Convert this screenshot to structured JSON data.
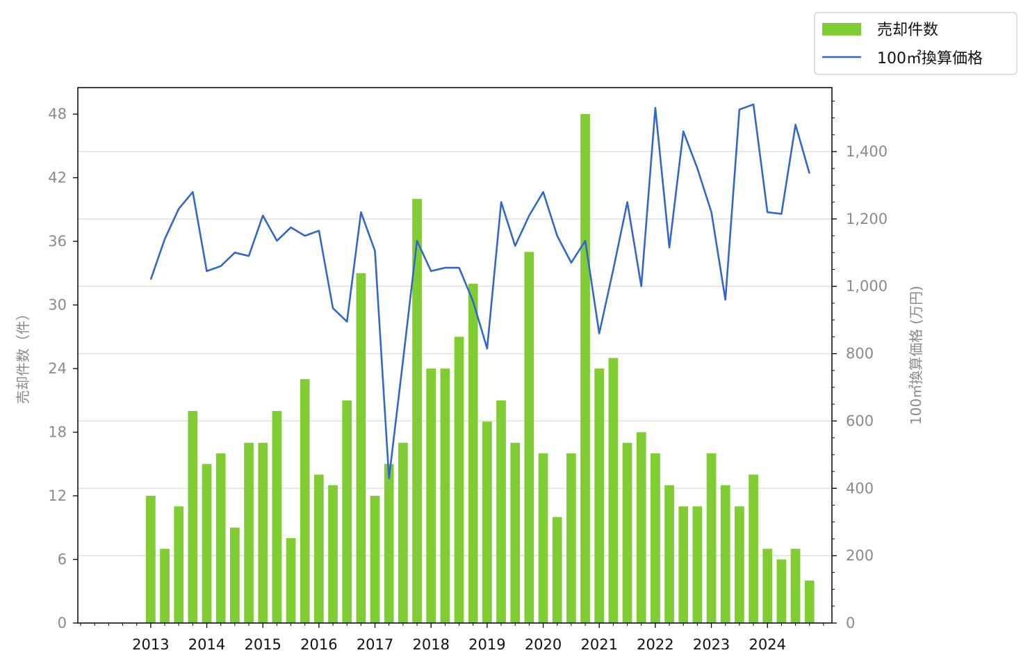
{
  "colors": {
    "bars": "#80cc33",
    "line": "#3366cc",
    "grid": "#d9d9d9",
    "axis": "#000000",
    "tick_label": "#8a8a8a"
  },
  "chart_data": {
    "type": "bar",
    "x": [
      2013.0,
      2013.25,
      2013.5,
      2013.75,
      2014.0,
      2014.25,
      2014.5,
      2014.75,
      2015.0,
      2015.25,
      2015.5,
      2015.75,
      2016.0,
      2016.25,
      2016.5,
      2016.75,
      2017.0,
      2017.25,
      2017.5,
      2017.75,
      2018.0,
      2018.25,
      2018.5,
      2018.75,
      2019.0,
      2019.25,
      2019.5,
      2019.75,
      2020.0,
      2020.25,
      2020.5,
      2020.75,
      2021.0,
      2021.25,
      2021.5,
      2021.75,
      2022.0,
      2022.25,
      2022.5,
      2022.75,
      2023.0,
      2023.25,
      2023.5,
      2023.75,
      2024.0,
      2024.25,
      2024.5,
      2024.75
    ],
    "xticks": [
      "2013",
      "2014",
      "2015",
      "2016",
      "2017",
      "2018",
      "2019",
      "2020",
      "2021",
      "2022",
      "2023",
      "2024"
    ],
    "xlim": [
      2011.7,
      2025.15
    ],
    "series": [
      {
        "name": "売却件数",
        "type": "bar",
        "axis": "left",
        "values": [
          12,
          7,
          11,
          20,
          15,
          16,
          9,
          17,
          17,
          20,
          8,
          23,
          14,
          13,
          21,
          33,
          12,
          15,
          17,
          40,
          24,
          24,
          27,
          32,
          19,
          21,
          17,
          35,
          16,
          10,
          16,
          48,
          24,
          25,
          17,
          18,
          16,
          13,
          11,
          11,
          16,
          13,
          11,
          14,
          7,
          6,
          7,
          4
        ]
      },
      {
        "name": "100㎡換算価格",
        "type": "line",
        "axis": "right",
        "values": [
          1020,
          1140,
          1230,
          1280,
          1045,
          1060,
          1100,
          1090,
          1210,
          1135,
          1175,
          1150,
          1165,
          935,
          895,
          1220,
          1105,
          430,
          780,
          1135,
          1045,
          1055,
          1055,
          955,
          815,
          1250,
          1120,
          1210,
          1280,
          1150,
          1070,
          1135,
          860,
          1050,
          1250,
          1000,
          1530,
          1115,
          1460,
          1350,
          1220,
          960,
          1525,
          1540,
          1220,
          1215,
          1480,
          1335
        ]
      }
    ],
    "left_axis": {
      "label": "売却件数（件）",
      "ticks": [
        "0",
        "6",
        "12",
        "18",
        "24",
        "30",
        "36",
        "42",
        "48"
      ],
      "ylim": [
        0,
        50.5
      ]
    },
    "right_axis": {
      "label": "100㎡換算価格 (万円)",
      "ticks": [
        "0",
        "200",
        "400",
        "600",
        "800",
        "1,000",
        "1,200",
        "1,400"
      ],
      "ylim": [
        0,
        1590
      ]
    },
    "grid": "horizontal (right axis)",
    "legend": {
      "position": "top-right",
      "entries": [
        "売却件数",
        "100㎡換算価格"
      ]
    }
  }
}
